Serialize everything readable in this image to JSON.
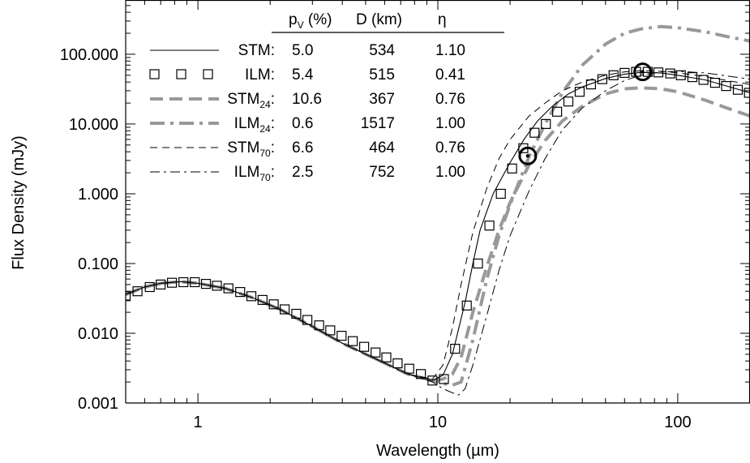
{
  "chart_data": {
    "type": "line",
    "xlabel": "Wavelength (µm)",
    "ylabel": "Flux Density (mJy)",
    "x_scale": "log",
    "y_scale": "log",
    "xlim": [
      0.5,
      200
    ],
    "ylim": [
      0.001,
      600
    ],
    "x_ticks": [
      1,
      10,
      100
    ],
    "x_tick_labels": [
      "1",
      "10",
      "100"
    ],
    "y_ticks": [
      0.001,
      0.01,
      0.1,
      1,
      10,
      100
    ],
    "y_tick_labels": [
      "0.001",
      "0.010",
      "0.100",
      "1.000",
      "10.000",
      "100.000"
    ],
    "grid": false,
    "legend_placement": "top-left",
    "table": {
      "headers": [
        "p_V (%)",
        "D (km)",
        "η"
      ],
      "header_pv_main": "p",
      "header_pv_sub": "V",
      "header_pv_rest": " (%)",
      "header_d": "D (km)",
      "header_eta": "η"
    },
    "series": [
      {
        "name": "STM",
        "label_main": "STM",
        "label_sub": "",
        "pv": "5.0",
        "d": "534",
        "eta": "1.10",
        "style": "thin-solid",
        "color": "#000000",
        "x": [
          0.5,
          0.6,
          0.7,
          0.85,
          1.0,
          1.3,
          1.7,
          2.2,
          3.0,
          4.0,
          5.5,
          7.5,
          9.5,
          10.5,
          11.5,
          13,
          14,
          15,
          17,
          20,
          23,
          26,
          30,
          35,
          40,
          50,
          60,
          70,
          85,
          100,
          130,
          160,
          200
        ],
        "y": [
          0.036,
          0.046,
          0.052,
          0.055,
          0.052,
          0.044,
          0.032,
          0.022,
          0.0125,
          0.0072,
          0.0043,
          0.0026,
          0.0021,
          0.0025,
          0.005,
          0.028,
          0.1,
          0.3,
          1.0,
          2.8,
          6.2,
          11,
          18,
          27,
          34,
          45,
          52,
          55,
          54,
          50,
          43,
          35,
          28
        ]
      },
      {
        "name": "ILM",
        "label_main": "ILM",
        "label_sub": "",
        "pv": "5.4",
        "d": "515",
        "eta": "0.41",
        "style": "squares",
        "color": "#000000",
        "x": [
          0.5,
          0.56,
          0.63,
          0.7,
          0.78,
          0.87,
          0.97,
          1.08,
          1.2,
          1.34,
          1.5,
          1.67,
          1.86,
          2.07,
          2.3,
          2.57,
          2.86,
          3.2,
          3.56,
          3.97,
          4.42,
          4.93,
          5.5,
          6.1,
          6.8,
          7.6,
          8.5,
          9.5,
          10.6,
          11.8,
          13.2,
          14.7,
          16.4,
          18.3,
          20.4,
          22.7,
          25.3,
          28.2,
          31.4,
          35,
          39,
          43.5,
          48.5,
          54,
          60,
          67,
          75,
          83,
          93,
          103,
          115,
          128,
          143,
          159,
          178,
          198
        ],
        "y": [
          0.034,
          0.04,
          0.046,
          0.05,
          0.053,
          0.054,
          0.054,
          0.051,
          0.048,
          0.044,
          0.039,
          0.034,
          0.03,
          0.026,
          0.022,
          0.019,
          0.0155,
          0.013,
          0.011,
          0.0092,
          0.0077,
          0.0064,
          0.0053,
          0.0045,
          0.0037,
          0.0031,
          0.0026,
          0.0021,
          0.0022,
          0.006,
          0.025,
          0.1,
          0.35,
          1.0,
          2.3,
          4.5,
          7.5,
          10,
          15,
          21,
          29,
          37,
          44,
          50,
          54,
          56,
          56,
          55,
          53,
          50,
          47,
          43,
          39,
          35,
          31,
          28
        ]
      },
      {
        "name": "STM24",
        "label_main": "STM",
        "label_sub": "24",
        "pv": "10.6",
        "d": "367",
        "eta": "0.76",
        "style": "thick-dashed",
        "color": "#999999",
        "x": [
          0.5,
          0.6,
          0.7,
          0.85,
          1.0,
          1.3,
          1.7,
          2.2,
          3.0,
          4.0,
          5.5,
          7.5,
          9.5,
          10.5,
          11.5,
          12.5,
          14,
          16,
          18,
          20,
          24,
          28,
          33,
          40,
          50,
          60,
          70,
          85,
          100,
          130,
          160,
          200
        ],
        "y": [
          0.036,
          0.046,
          0.052,
          0.055,
          0.052,
          0.044,
          0.032,
          0.022,
          0.0125,
          0.0072,
          0.0043,
          0.0026,
          0.0021,
          0.0022,
          0.0026,
          0.0045,
          0.02,
          0.09,
          0.3,
          0.75,
          2.6,
          5.8,
          11,
          18,
          27,
          32,
          33,
          32,
          29,
          22,
          17,
          13
        ]
      },
      {
        "name": "ILM24",
        "label_main": "ILM",
        "label_sub": "24",
        "pv": "0.6",
        "d": "1517",
        "eta": "1.00",
        "style": "thick-dash-dot",
        "color": "#999999",
        "x": [
          0.5,
          0.6,
          0.7,
          0.85,
          1.0,
          1.3,
          1.7,
          2.2,
          3.0,
          4.0,
          5.5,
          7.5,
          9.5,
          10.5,
          11.5,
          12.5,
          14,
          16,
          18,
          20,
          24,
          28,
          33,
          40,
          50,
          60,
          70,
          85,
          100,
          130,
          160,
          200
        ],
        "y": [
          0.036,
          0.046,
          0.052,
          0.055,
          0.052,
          0.044,
          0.032,
          0.022,
          0.0125,
          0.0072,
          0.0043,
          0.0026,
          0.0021,
          0.0019,
          0.0018,
          0.002,
          0.008,
          0.06,
          0.25,
          0.7,
          3.4,
          10,
          28,
          70,
          140,
          200,
          230,
          250,
          240,
          210,
          180,
          155
        ]
      },
      {
        "name": "STM70",
        "label_main": "STM",
        "label_sub": "70",
        "pv": "6.6",
        "d": "464",
        "eta": "0.76",
        "style": "thin-dashed",
        "color": "#000000",
        "x": [
          0.5,
          0.6,
          0.7,
          0.85,
          1.0,
          1.3,
          1.7,
          2.2,
          3.0,
          4.0,
          5.5,
          7.5,
          9.5,
          10.5,
          11.5,
          12.5,
          14,
          16,
          18,
          20,
          24,
          28,
          33,
          40,
          50,
          60,
          70,
          85,
          100,
          130,
          160,
          200
        ],
        "y": [
          0.036,
          0.046,
          0.052,
          0.055,
          0.052,
          0.044,
          0.032,
          0.022,
          0.0125,
          0.0072,
          0.0043,
          0.0026,
          0.0022,
          0.0035,
          0.012,
          0.05,
          0.28,
          1.2,
          3.2,
          6.0,
          13,
          20,
          30,
          40,
          50,
          56,
          58,
          57,
          54,
          48,
          42,
          37
        ]
      },
      {
        "name": "ILM70",
        "label_main": "ILM",
        "label_sub": "70",
        "pv": "2.5",
        "d": "752",
        "eta": "1.00",
        "style": "thin-dash-dot",
        "color": "#000000",
        "x": [
          0.5,
          0.6,
          0.7,
          0.85,
          1.0,
          1.3,
          1.7,
          2.2,
          3.0,
          4.0,
          5.5,
          7.5,
          9.5,
          10.5,
          11.5,
          12.2,
          13,
          14,
          16,
          18,
          20,
          24,
          28,
          33,
          40,
          50,
          60,
          70,
          85,
          100,
          130,
          160,
          200
        ],
        "y": [
          0.036,
          0.046,
          0.052,
          0.055,
          0.052,
          0.044,
          0.032,
          0.022,
          0.0125,
          0.0072,
          0.0043,
          0.0026,
          0.002,
          0.0016,
          0.0014,
          0.0013,
          0.0016,
          0.0035,
          0.018,
          0.08,
          0.25,
          1.1,
          3.2,
          8.2,
          17,
          30,
          42,
          50,
          56,
          57,
          54,
          49,
          44
        ]
      }
    ],
    "observations": [
      {
        "x": 23.7,
        "y": 3.5
      },
      {
        "x": 71.4,
        "y": 56
      }
    ]
  }
}
